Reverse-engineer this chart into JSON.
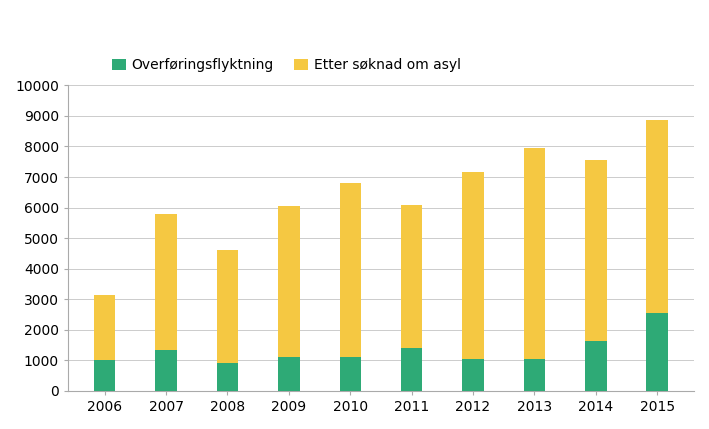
{
  "years": [
    2006,
    2007,
    2008,
    2009,
    2010,
    2011,
    2012,
    2013,
    2014,
    2015
  ],
  "overforing": [
    1000,
    1350,
    900,
    1100,
    1100,
    1400,
    1050,
    1050,
    1650,
    2550
  ],
  "asyl": [
    2150,
    4450,
    3700,
    4950,
    5700,
    4700,
    6100,
    6900,
    5900,
    6300
  ],
  "color_overforing": "#2eaa76",
  "color_asyl": "#f5c842",
  "legend_overforing": "Overføringsflyktning",
  "legend_asyl": "Etter søknad om asyl",
  "ylim": [
    0,
    10000
  ],
  "yticks": [
    0,
    1000,
    2000,
    3000,
    4000,
    5000,
    6000,
    7000,
    8000,
    9000,
    10000
  ],
  "background_color": "#ffffff",
  "bar_width": 0.35
}
